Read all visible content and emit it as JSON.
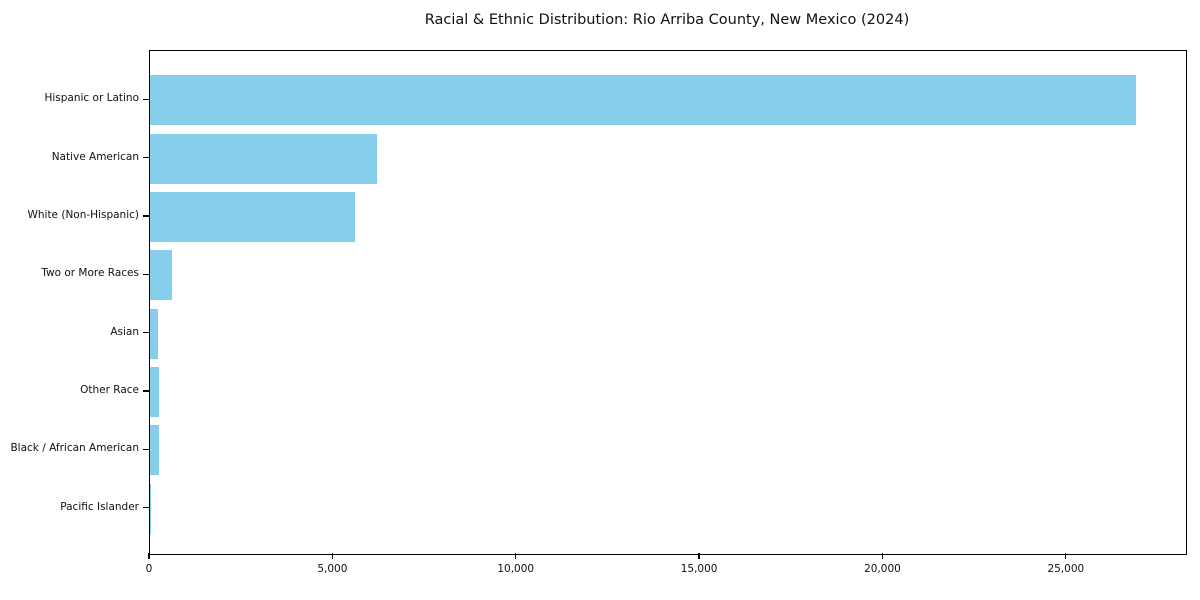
{
  "chart_data": {
    "type": "bar",
    "orientation": "horizontal",
    "title": "Racial & Ethnic Distribution: Rio Arriba County, New Mexico (2024)",
    "categories": [
      "Hispanic or Latino",
      "Native American",
      "White (Non-Hispanic)",
      "Two or More Races",
      "Asian",
      "Other Race",
      "Black / African American",
      "Pacific Islander"
    ],
    "values": [
      26900,
      6200,
      5600,
      600,
      220,
      250,
      250,
      20
    ],
    "xlabel": "",
    "ylabel": "",
    "xlim": [
      0,
      28250
    ],
    "xticks": [
      0,
      5000,
      10000,
      15000,
      20000,
      25000
    ],
    "xtick_labels": [
      "0",
      "5,000",
      "10,000",
      "15,000",
      "20,000",
      "25,000"
    ],
    "bar_color": "#87CEEB",
    "spine_color": "#000000",
    "text_color": "#111111",
    "grid": false,
    "legend": false,
    "background": "#ffffff"
  }
}
